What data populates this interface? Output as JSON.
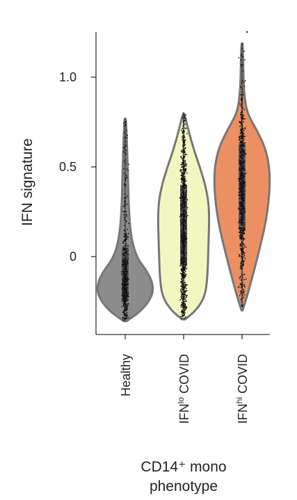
{
  "chart_data": {
    "type": "violin",
    "ylabel": "IFN signature",
    "xlabel": "CD14⁺ mono phenotype",
    "xlabel_lines": [
      "CD14⁺ mono",
      "phenotype"
    ],
    "ylim": [
      -0.37,
      1.25
    ],
    "yticks": [
      0,
      0.5,
      1.0
    ],
    "ytick_labels": [
      "0",
      "0.5",
      "1.0"
    ],
    "categories": [
      {
        "text": "Healthy",
        "sup": ""
      },
      {
        "text": "IFN",
        "sup": "lo",
        "rest": " COVID"
      },
      {
        "text": "IFN",
        "sup": "hi",
        "rest": " COVID"
      }
    ],
    "series": [
      {
        "color": "#8c8c8c",
        "box": {
          "min": -0.31,
          "q1": -0.25,
          "median": -0.15,
          "q3": 0.05,
          "max": 0.77
        },
        "density": [
          [
            -0.36,
            0.05
          ],
          [
            -0.3,
            0.6
          ],
          [
            -0.22,
            0.98
          ],
          [
            -0.15,
            1.0
          ],
          [
            -0.08,
            0.78
          ],
          [
            -0.02,
            0.48
          ],
          [
            0.05,
            0.3
          ],
          [
            0.15,
            0.18
          ],
          [
            0.3,
            0.12
          ],
          [
            0.45,
            0.1
          ],
          [
            0.6,
            0.07
          ],
          [
            0.72,
            0.04
          ],
          [
            0.77,
            0.02
          ]
        ]
      },
      {
        "color": "#f2f7c2",
        "box": {
          "min": -0.28,
          "q1": -0.05,
          "median": 0.12,
          "q3": 0.4,
          "max": 0.8
        },
        "density": [
          [
            -0.35,
            0.05
          ],
          [
            -0.3,
            0.45
          ],
          [
            -0.22,
            0.78
          ],
          [
            -0.1,
            0.86
          ],
          [
            0.0,
            0.88
          ],
          [
            0.1,
            0.9
          ],
          [
            0.2,
            0.92
          ],
          [
            0.3,
            0.9
          ],
          [
            0.4,
            0.78
          ],
          [
            0.5,
            0.58
          ],
          [
            0.6,
            0.36
          ],
          [
            0.7,
            0.18
          ],
          [
            0.8,
            0.02
          ]
        ]
      },
      {
        "color": "#ec9063",
        "box": {
          "min": -0.28,
          "q1": 0.15,
          "median": 0.45,
          "q3": 0.63,
          "max": 1.19
        },
        "density": [
          [
            -0.3,
            0.02
          ],
          [
            -0.2,
            0.22
          ],
          [
            -0.05,
            0.48
          ],
          [
            0.1,
            0.72
          ],
          [
            0.2,
            0.86
          ],
          [
            0.3,
            0.95
          ],
          [
            0.4,
            1.0
          ],
          [
            0.5,
            0.98
          ],
          [
            0.6,
            0.85
          ],
          [
            0.7,
            0.55
          ],
          [
            0.8,
            0.18
          ],
          [
            0.9,
            0.08
          ],
          [
            1.0,
            0.05
          ],
          [
            1.1,
            0.04
          ],
          [
            1.19,
            0.02
          ]
        ]
      }
    ],
    "grid": false,
    "legend": "none"
  }
}
